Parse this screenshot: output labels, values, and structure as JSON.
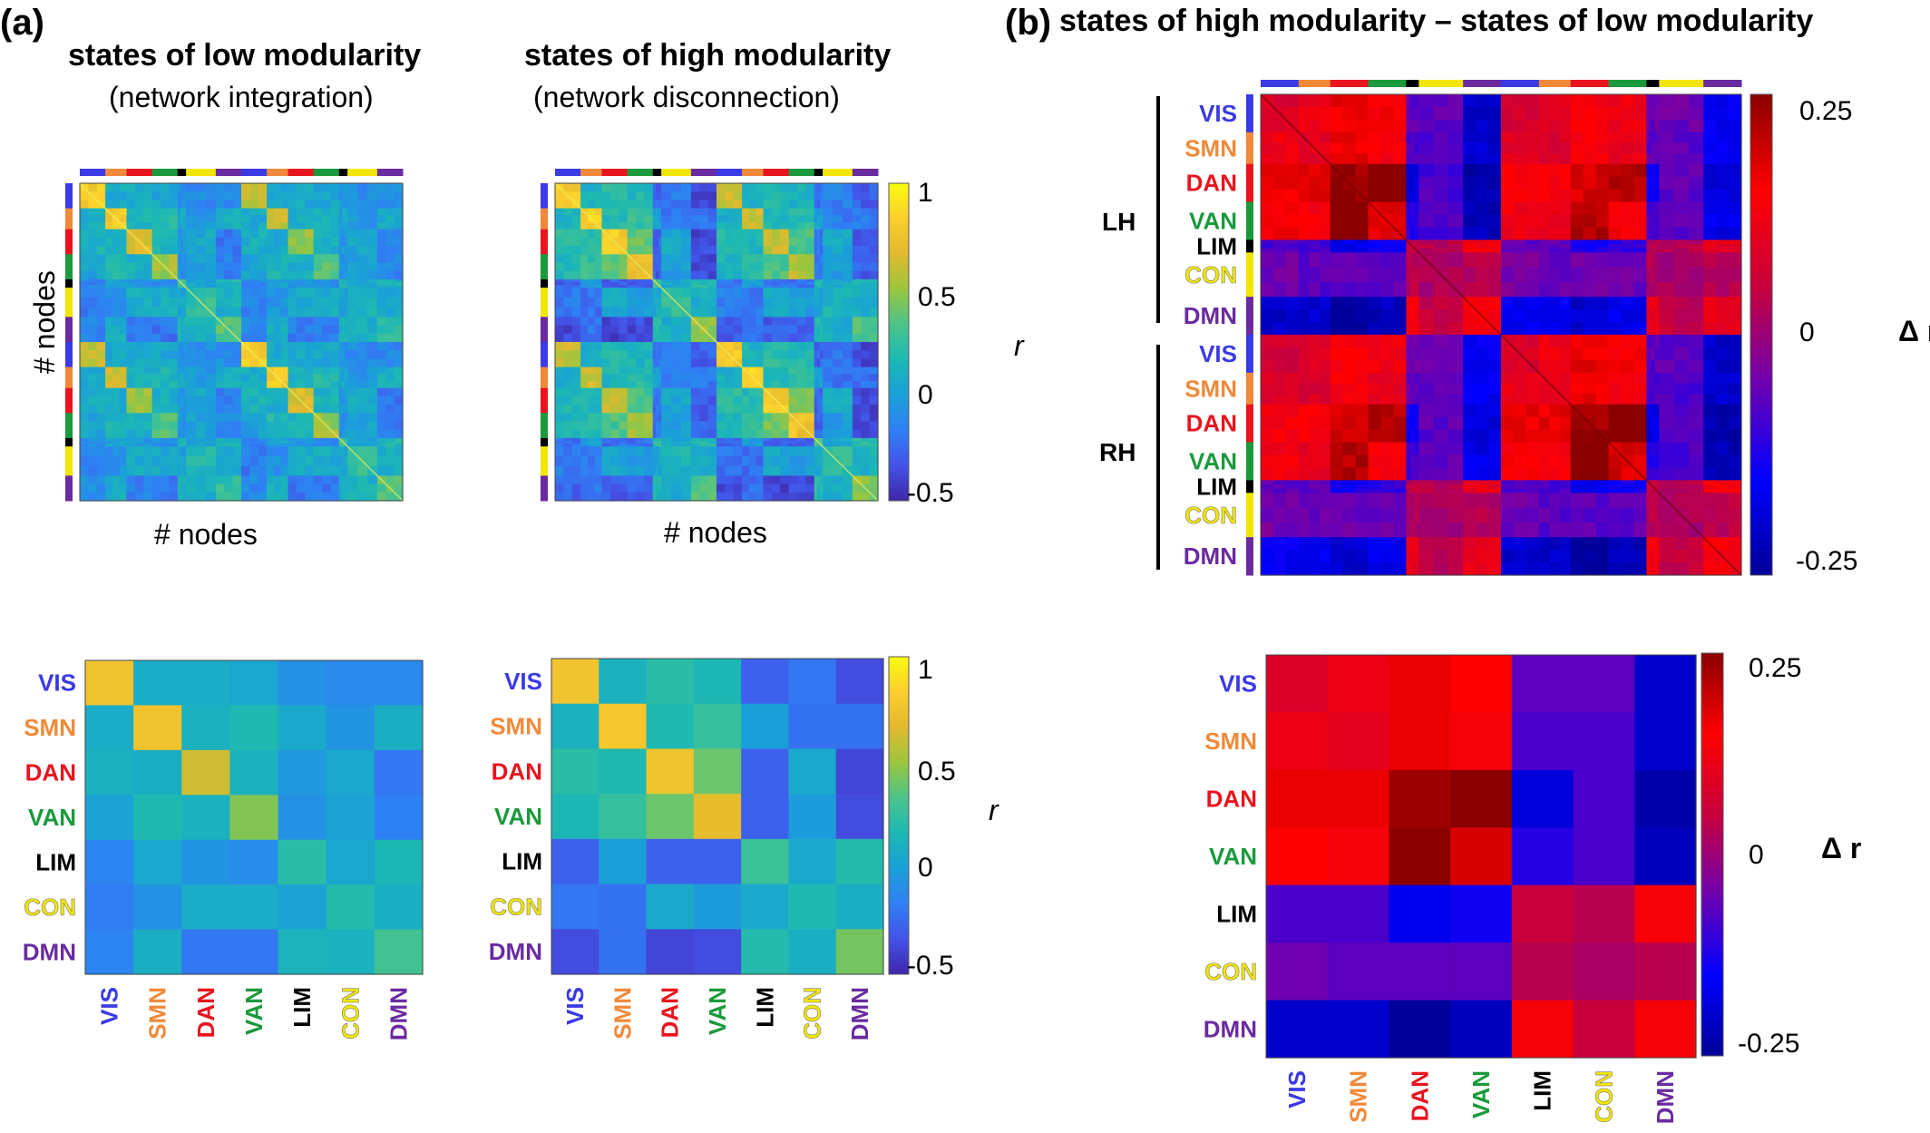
{
  "panels": {
    "a": {
      "letter": "(a)",
      "low": {
        "title": "states of low modularity",
        "subtitle": "(network integration)"
      },
      "high": {
        "title": "states of high modularity",
        "subtitle": "(network disconnection)"
      },
      "x_axis_label": "# nodes",
      "y_axis_label": "# nodes",
      "colorbar_label": "r",
      "colorbar_ticks": [
        "1",
        "0.5",
        "0",
        "-0.5"
      ]
    },
    "b": {
      "letter": "(b)",
      "title": "states of high modularity – states of low modularity",
      "colorbar_label": "Δ r",
      "colorbar_ticks": [
        "0.25",
        "0",
        "-0.25"
      ],
      "hemispheres": [
        "LH",
        "RH"
      ]
    }
  },
  "networks": [
    {
      "name": "VIS",
      "color": "#3a3ae6"
    },
    {
      "name": "SMN",
      "color": "#f08a3a"
    },
    {
      "name": "DAN",
      "color": "#e8141e"
    },
    {
      "name": "VAN",
      "color": "#1a9a3c"
    },
    {
      "name": "LIM",
      "color": "#000000"
    },
    {
      "name": "CON",
      "color": "#f2e600"
    },
    {
      "name": "DMN",
      "color": "#6a2aa0"
    }
  ],
  "colormaps": {
    "parula": [
      "#3e26a8",
      "#4353e8",
      "#2f80f4",
      "#1aa0d8",
      "#1cb8b4",
      "#4bc48a",
      "#9ac63e",
      "#e2b92e",
      "#fcce2e",
      "#f9fb0e"
    ],
    "bwr_dark": [
      "#00009a",
      "#0000ff",
      "#6e00b0",
      "#c8003c",
      "#ff0000",
      "#8a0000"
    ]
  },
  "chart_data": [
    {
      "type": "heatmap",
      "title": "states of low modularity",
      "subtitle": "(network integration)",
      "xlabel": "# nodes",
      "ylabel": "# nodes",
      "colorbar_label": "r",
      "clim": [
        -0.5,
        1
      ],
      "description_level": "node-level matrix, two hemispheres x seven networks"
    },
    {
      "type": "heatmap",
      "title": "states of high modularity",
      "subtitle": "(network disconnection)",
      "xlabel": "# nodes",
      "ylabel": "# nodes",
      "colorbar_label": "r",
      "colorbar_ticks": [
        1,
        0.5,
        0,
        -0.5
      ],
      "clim": [
        -0.5,
        1
      ]
    },
    {
      "type": "heatmap",
      "x": [
        "VIS",
        "SMN",
        "DAN",
        "VAN",
        "LIM",
        "CON",
        "DMN"
      ],
      "y": [
        "VIS",
        "SMN",
        "DAN",
        "VAN",
        "LIM",
        "CON",
        "DMN"
      ],
      "clim": [
        -0.5,
        1
      ],
      "values": [
        [
          0.75,
          0.08,
          0.08,
          0.04,
          -0.08,
          -0.12,
          -0.12
        ],
        [
          0.08,
          0.75,
          0.12,
          0.18,
          0.06,
          -0.06,
          0.1
        ],
        [
          0.12,
          0.1,
          0.62,
          0.12,
          -0.04,
          0.06,
          -0.2
        ],
        [
          0.02,
          0.18,
          0.12,
          0.45,
          -0.08,
          0.02,
          -0.16
        ],
        [
          -0.14,
          0.04,
          -0.06,
          -0.1,
          0.22,
          0.04,
          0.16
        ],
        [
          -0.18,
          -0.08,
          0.08,
          0.08,
          0.02,
          0.2,
          0.1
        ],
        [
          -0.14,
          0.1,
          -0.2,
          -0.2,
          0.14,
          0.12,
          0.3
        ]
      ]
    },
    {
      "type": "heatmap",
      "x": [
        "VIS",
        "SMN",
        "DAN",
        "VAN",
        "LIM",
        "CON",
        "DMN"
      ],
      "y": [
        "VIS",
        "SMN",
        "DAN",
        "VAN",
        "LIM",
        "CON",
        "DMN"
      ],
      "colorbar_label": "r",
      "colorbar_ticks": [
        1,
        0.5,
        0,
        -0.5
      ],
      "clim": [
        -0.5,
        1
      ],
      "values": [
        [
          0.75,
          0.12,
          0.22,
          0.16,
          -0.28,
          -0.2,
          -0.36
        ],
        [
          0.12,
          0.78,
          0.18,
          0.26,
          0.0,
          -0.22,
          -0.22
        ],
        [
          0.22,
          0.18,
          0.75,
          0.4,
          -0.28,
          0.06,
          -0.38
        ],
        [
          0.16,
          0.26,
          0.4,
          0.7,
          -0.28,
          -0.02,
          -0.36
        ],
        [
          -0.28,
          0.0,
          -0.28,
          -0.28,
          0.28,
          0.06,
          0.2
        ],
        [
          -0.2,
          -0.22,
          0.06,
          -0.02,
          0.06,
          0.18,
          0.1
        ],
        [
          -0.36,
          -0.22,
          -0.38,
          -0.36,
          0.2,
          0.1,
          0.42
        ]
      ]
    },
    {
      "type": "heatmap",
      "title": "states of high modularity – states of low modularity",
      "colorbar_label": "Δ r",
      "colorbar_ticks": [
        0.25,
        0,
        -0.25
      ],
      "clim": [
        -0.3,
        0.3
      ],
      "y_groups": [
        "LH",
        "RH"
      ]
    },
    {
      "type": "heatmap",
      "x": [
        "VIS",
        "SMN",
        "DAN",
        "VAN",
        "LIM",
        "CON",
        "DMN"
      ],
      "y": [
        "VIS",
        "SMN",
        "DAN",
        "VAN",
        "LIM",
        "CON",
        "DMN"
      ],
      "colorbar_label": "Δ r",
      "colorbar_ticks": [
        0.25,
        0,
        -0.25
      ],
      "clim": [
        -0.3,
        0.3
      ],
      "values": [
        [
          0.1,
          0.14,
          0.2,
          0.18,
          -0.08,
          -0.08,
          -0.24
        ],
        [
          0.14,
          0.12,
          0.2,
          0.16,
          -0.1,
          -0.1,
          -0.24
        ],
        [
          0.2,
          0.2,
          0.28,
          0.32,
          -0.22,
          -0.1,
          -0.28
        ],
        [
          0.18,
          0.16,
          0.32,
          0.22,
          -0.14,
          -0.1,
          -0.26
        ],
        [
          -0.1,
          -0.1,
          -0.2,
          -0.16,
          0.06,
          0.04,
          0.16
        ],
        [
          -0.06,
          -0.08,
          -0.08,
          -0.08,
          0.04,
          0.02,
          0.04
        ],
        [
          -0.24,
          -0.24,
          -0.3,
          -0.26,
          0.16,
          0.06,
          0.16
        ]
      ]
    }
  ]
}
